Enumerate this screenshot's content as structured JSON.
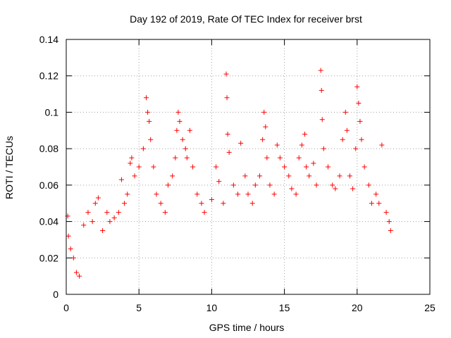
{
  "chart_data": {
    "type": "scatter",
    "title": "Day 192 of 2019, Rate Of TEC Index for receiver brst",
    "xlabel": "GPS time / hours",
    "ylabel": "ROTI / TECUs",
    "xlim": [
      0,
      25
    ],
    "ylim": [
      0,
      0.14
    ],
    "xticks": [
      0,
      5,
      10,
      15,
      20,
      25
    ],
    "xtick_labels": [
      "0",
      "5",
      "10",
      "15",
      "20",
      "25"
    ],
    "yticks": [
      0,
      0.02,
      0.04,
      0.06,
      0.08,
      0.1,
      0.12,
      0.14
    ],
    "ytick_labels": [
      "0",
      "0.02",
      "0.04",
      "0.06",
      "0.08",
      "0.1",
      "0.12",
      "0.14"
    ],
    "grid": true,
    "marker": "+",
    "color": "#ff0000",
    "series": [
      {
        "points": [
          [
            0.1,
            0.043
          ],
          [
            0.15,
            0.032
          ],
          [
            0.3,
            0.025
          ],
          [
            0.5,
            0.02
          ],
          [
            0.7,
            0.012
          ],
          [
            0.9,
            0.01
          ],
          [
            1.2,
            0.038
          ],
          [
            1.5,
            0.045
          ],
          [
            1.8,
            0.04
          ],
          [
            2.0,
            0.05
          ],
          [
            2.2,
            0.053
          ],
          [
            2.5,
            0.035
          ],
          [
            2.8,
            0.045
          ],
          [
            3.0,
            0.04
          ],
          [
            3.3,
            0.042
          ],
          [
            3.6,
            0.045
          ],
          [
            3.8,
            0.063
          ],
          [
            4.0,
            0.05
          ],
          [
            4.2,
            0.055
          ],
          [
            4.4,
            0.072
          ],
          [
            4.5,
            0.075
          ],
          [
            4.7,
            0.065
          ],
          [
            5.0,
            0.07
          ],
          [
            5.3,
            0.08
          ],
          [
            5.5,
            0.108
          ],
          [
            5.6,
            0.1
          ],
          [
            5.7,
            0.095
          ],
          [
            5.8,
            0.085
          ],
          [
            6.0,
            0.07
          ],
          [
            6.2,
            0.055
          ],
          [
            6.5,
            0.05
          ],
          [
            6.8,
            0.045
          ],
          [
            7.0,
            0.06
          ],
          [
            7.3,
            0.065
          ],
          [
            7.5,
            0.075
          ],
          [
            7.6,
            0.09
          ],
          [
            7.7,
            0.1
          ],
          [
            7.8,
            0.095
          ],
          [
            8.0,
            0.085
          ],
          [
            8.2,
            0.08
          ],
          [
            8.3,
            0.075
          ],
          [
            8.5,
            0.09
          ],
          [
            8.7,
            0.07
          ],
          [
            9.0,
            0.055
          ],
          [
            9.3,
            0.05
          ],
          [
            9.5,
            0.045
          ],
          [
            10.0,
            0.052
          ],
          [
            10.3,
            0.07
          ],
          [
            10.5,
            0.062
          ],
          [
            10.8,
            0.05
          ],
          [
            11.0,
            0.121
          ],
          [
            11.05,
            0.108
          ],
          [
            11.1,
            0.088
          ],
          [
            11.2,
            0.078
          ],
          [
            11.5,
            0.06
          ],
          [
            11.8,
            0.055
          ],
          [
            12.0,
            0.083
          ],
          [
            12.3,
            0.065
          ],
          [
            12.5,
            0.055
          ],
          [
            12.8,
            0.05
          ],
          [
            13.0,
            0.06
          ],
          [
            13.3,
            0.065
          ],
          [
            13.5,
            0.085
          ],
          [
            13.6,
            0.1
          ],
          [
            13.7,
            0.092
          ],
          [
            13.8,
            0.075
          ],
          [
            14.0,
            0.06
          ],
          [
            14.3,
            0.055
          ],
          [
            14.5,
            0.082
          ],
          [
            14.7,
            0.075
          ],
          [
            15.0,
            0.07
          ],
          [
            15.3,
            0.065
          ],
          [
            15.5,
            0.058
          ],
          [
            15.8,
            0.055
          ],
          [
            16.0,
            0.075
          ],
          [
            16.2,
            0.082
          ],
          [
            16.4,
            0.088
          ],
          [
            16.5,
            0.07
          ],
          [
            16.7,
            0.065
          ],
          [
            17.0,
            0.072
          ],
          [
            17.2,
            0.06
          ],
          [
            17.5,
            0.123
          ],
          [
            17.55,
            0.112
          ],
          [
            17.6,
            0.096
          ],
          [
            17.7,
            0.08
          ],
          [
            18.0,
            0.07
          ],
          [
            18.3,
            0.06
          ],
          [
            18.5,
            0.058
          ],
          [
            18.8,
            0.065
          ],
          [
            19.0,
            0.085
          ],
          [
            19.2,
            0.1
          ],
          [
            19.3,
            0.09
          ],
          [
            19.5,
            0.065
          ],
          [
            19.7,
            0.058
          ],
          [
            19.9,
            0.08
          ],
          [
            20.0,
            0.114
          ],
          [
            20.1,
            0.105
          ],
          [
            20.2,
            0.095
          ],
          [
            20.3,
            0.085
          ],
          [
            20.5,
            0.07
          ],
          [
            20.8,
            0.06
          ],
          [
            21.0,
            0.05
          ],
          [
            21.3,
            0.055
          ],
          [
            21.5,
            0.05
          ],
          [
            21.7,
            0.082
          ],
          [
            22.0,
            0.045
          ],
          [
            22.2,
            0.04
          ],
          [
            22.3,
            0.035
          ]
        ]
      }
    ]
  }
}
